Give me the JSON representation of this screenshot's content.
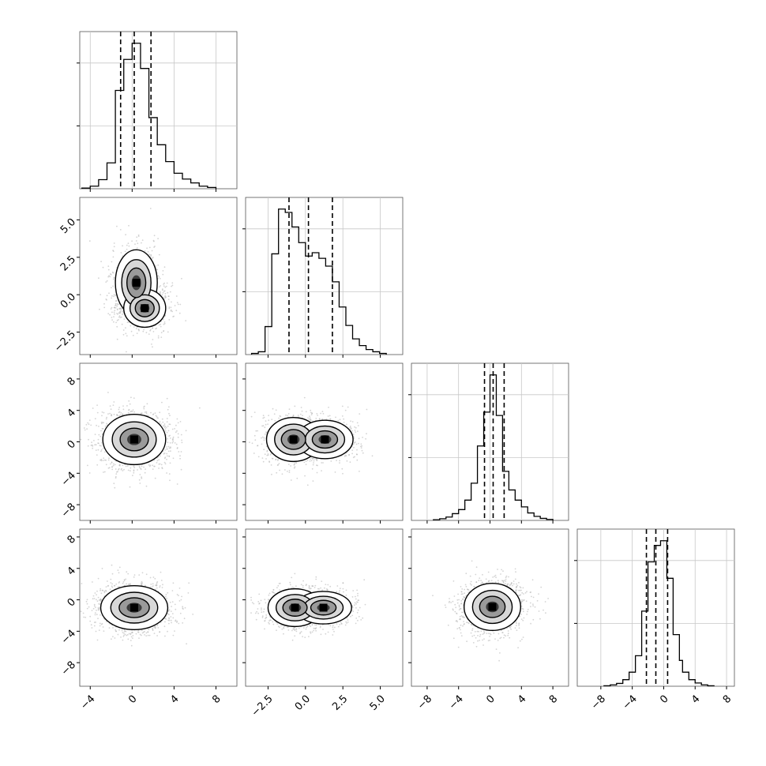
{
  "chart_data": {
    "type": "corner",
    "n_params": 4,
    "quantiles": [
      0.16,
      0.5,
      0.84
    ],
    "grid": true,
    "ranges": [
      [
        -5.0,
        10.0
      ],
      [
        -4.0,
        6.5
      ],
      [
        -10.0,
        10.0
      ],
      [
        -11.0,
        9.0
      ]
    ],
    "x_ticks": [
      {
        "values": [
          -4,
          0,
          4,
          8
        ],
        "labels": [
          "−4",
          "0",
          "4",
          "8"
        ]
      },
      {
        "values": [
          -2.5,
          0.0,
          2.5,
          5.0
        ],
        "labels": [
          "−2.5",
          "0.0",
          "2.5",
          "5.0"
        ]
      },
      {
        "values": [
          -8,
          -4,
          0,
          4,
          8
        ],
        "labels": [
          "−8",
          "−4",
          "0",
          "4",
          "8"
        ]
      },
      {
        "values": [
          -8,
          -4,
          0,
          4,
          8
        ],
        "labels": [
          "−8",
          "−4",
          "0",
          "4",
          "8"
        ]
      }
    ],
    "y_ticks": [
      null,
      {
        "values": [
          -2.5,
          0.0,
          2.5,
          5.0
        ],
        "labels": [
          "−2.5",
          "0.0",
          "2.5",
          "5.0"
        ]
      },
      {
        "values": [
          -8,
          -4,
          0,
          4,
          8
        ],
        "labels": [
          "−8",
          "−4",
          "0",
          "4",
          "8"
        ]
      },
      {
        "values": [
          -8,
          -4,
          0,
          4,
          8
        ],
        "labels": [
          "−8",
          "−4",
          "0",
          "4",
          "8"
        ]
      }
    ],
    "marginals": [
      {
        "param": 0,
        "quantile_values": [
          -1.1,
          0.2,
          1.8
        ],
        "bin_edges": [
          -4.8,
          -4.0,
          -3.2,
          -2.4,
          -1.6,
          -0.8,
          0.0,
          0.8,
          1.6,
          2.4,
          3.2,
          4.0,
          4.8,
          5.6,
          6.4,
          7.2,
          8.0
        ],
        "counts": [
          1,
          4,
          14,
          40,
          152,
          200,
          225,
          186,
          110,
          68,
          42,
          24,
          15,
          9,
          4,
          2
        ]
      },
      {
        "param": 1,
        "quantile_values": [
          -1.1,
          0.2,
          1.8
        ],
        "bin_edges": [
          -3.6,
          -3.15,
          -2.7,
          -2.25,
          -1.8,
          -1.35,
          -0.9,
          -0.45,
          0.0,
          0.45,
          0.9,
          1.35,
          1.8,
          2.25,
          2.7,
          3.15,
          3.6,
          4.05,
          4.5,
          4.95,
          5.4
        ],
        "counts": [
          2,
          5,
          50,
          180,
          260,
          254,
          228,
          200,
          176,
          182,
          172,
          158,
          130,
          85,
          52,
          28,
          16,
          9,
          5,
          2
        ]
      },
      {
        "param": 2,
        "quantile_values": [
          -0.7,
          0.4,
          1.8
        ],
        "bin_edges": [
          -7.2,
          -6.4,
          -5.6,
          -4.8,
          -4.0,
          -3.2,
          -2.4,
          -1.6,
          -0.8,
          0.0,
          0.8,
          1.6,
          2.4,
          3.2,
          4.0,
          4.8,
          5.6,
          6.4,
          7.2,
          8.0
        ],
        "counts": [
          2,
          5,
          10,
          20,
          32,
          60,
          110,
          220,
          320,
          430,
          310,
          145,
          90,
          60,
          40,
          22,
          12,
          6,
          3
        ]
      },
      {
        "param": 3,
        "quantile_values": [
          -2.2,
          -1.0,
          0.5
        ],
        "bin_edges": [
          -7.6,
          -6.8,
          -6.0,
          -5.2,
          -4.4,
          -3.6,
          -2.8,
          -2.0,
          -1.2,
          -0.4,
          0.4,
          1.2,
          2.0,
          2.4,
          3.2,
          4.0,
          4.8,
          5.6,
          6.4
        ],
        "counts": [
          1,
          3,
          6,
          14,
          30,
          65,
          160,
          265,
          300,
          310,
          230,
          110,
          55,
          30,
          14,
          7,
          3,
          1
        ]
      }
    ],
    "pairs": [
      {
        "x": 0,
        "y": 1,
        "centers": [
          {
            "x": 0.4,
            "y": 0.8,
            "sx": 1.0,
            "sy": 1.1,
            "w": 1.0
          },
          {
            "x": 1.2,
            "y": -0.9,
            "sx": 1.1,
            "sy": 0.7,
            "w": 0.7
          }
        ]
      },
      {
        "x": 0,
        "y": 2,
        "centers": [
          {
            "x": 0.2,
            "y": 0.3,
            "sx": 1.5,
            "sy": 1.6,
            "w": 1.0
          }
        ]
      },
      {
        "x": 1,
        "y": 2,
        "centers": [
          {
            "x": -0.8,
            "y": 0.3,
            "sx": 0.9,
            "sy": 1.4,
            "w": 1.0
          },
          {
            "x": 1.3,
            "y": 0.3,
            "sx": 1.0,
            "sy": 1.3,
            "w": 0.8
          }
        ]
      },
      {
        "x": 0,
        "y": 3,
        "centers": [
          {
            "x": 0.2,
            "y": -1.0,
            "sx": 1.6,
            "sy": 1.4,
            "w": 1.0
          }
        ]
      },
      {
        "x": 1,
        "y": 3,
        "centers": [
          {
            "x": -0.7,
            "y": -1.0,
            "sx": 0.9,
            "sy": 1.2,
            "w": 1.0
          },
          {
            "x": 1.2,
            "y": -1.0,
            "sx": 1.0,
            "sy": 1.1,
            "w": 0.8
          }
        ]
      },
      {
        "x": 2,
        "y": 3,
        "centers": [
          {
            "x": 0.3,
            "y": -0.9,
            "sx": 1.8,
            "sy": 1.5,
            "w": 1.0
          }
        ]
      }
    ]
  }
}
